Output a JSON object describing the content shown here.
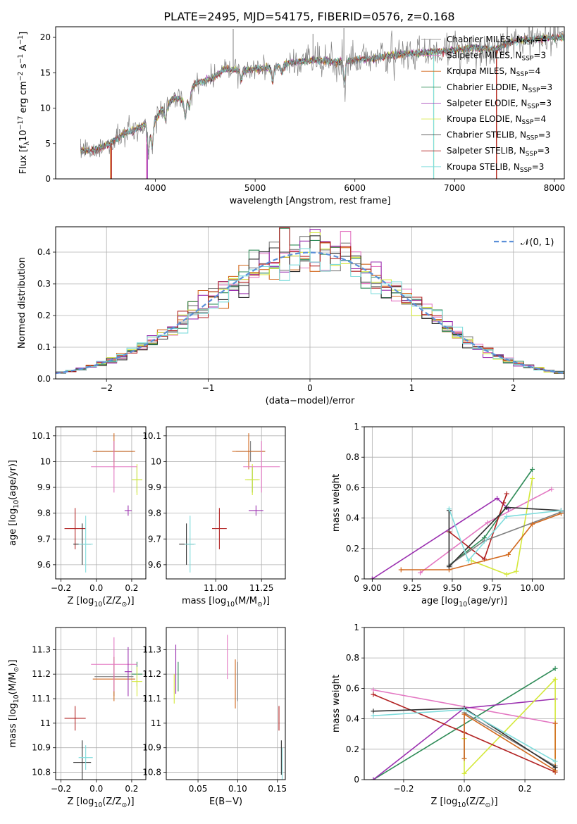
{
  "figure_title": "PLATE=2495, MJD=54175, FIBERID=0576, z=0.168",
  "models": [
    {
      "label": "Chabrier MILES, N$_{SSP}$=4",
      "short": "Chabrier MILES, N",
      "n": "4",
      "color": "#7f7f7f"
    },
    {
      "label": "Salpeter MILES, N$_{SSP}$=3",
      "short": "Salpeter MILES, N",
      "n": "3",
      "color": "#e377c2"
    },
    {
      "label": "Kroupa MILES, N$_{SSP}$=4",
      "short": "Kroupa MILES, N",
      "n": "4",
      "color": "#d2691e"
    },
    {
      "label": "Chabrier ELODIE, N$_{SSP}$=3",
      "short": "Chabrier ELODIE, N",
      "n": "3",
      "color": "#2e8b57"
    },
    {
      "label": "Salpeter ELODIE, N$_{SSP}$=3",
      "short": "Salpeter ELODIE, N",
      "n": "3",
      "color": "#9b30b0"
    },
    {
      "label": "Kroupa ELODIE, N$_{SSP}$=4",
      "short": "Kroupa ELODIE, N",
      "n": "4",
      "color": "#d4e83a"
    },
    {
      "label": "Chabrier STELIB, N$_{SSP}$=3",
      "short": "Chabrier STELIB, N",
      "n": "3",
      "color": "#2f2f2f"
    },
    {
      "label": "Salpeter STELIB, N$_{SSP}$=3",
      "short": "Salpeter STELIB, N",
      "n": "3",
      "color": "#b22222"
    },
    {
      "label": "Kroupa STELIB, N$_{SSP}$=3",
      "short": "Kroupa STELIB, N",
      "n": "3",
      "color": "#7fdcdc"
    }
  ],
  "chart_data": [
    {
      "id": "spectrum",
      "type": "line",
      "title": "PLATE=2495, MJD=54175, FIBERID=0576, z=0.168",
      "xlabel": "wavelength [Angstrom, rest frame]",
      "ylabel": "Flux [f$_\\lambda$10$^{-17}$ erg cm$^{-2}$ s$^{-1}$ A$^{-1}$]",
      "xlim": [
        3000,
        8100
      ],
      "ylim": [
        0,
        21.5
      ],
      "xticks": [
        4000,
        5000,
        6000,
        7000,
        8000
      ],
      "yticks": [
        0,
        5,
        10,
        15,
        20
      ],
      "continuum": {
        "x": [
          3250,
          3400,
          3550,
          3700,
          3800,
          3900,
          3950,
          4050,
          4200,
          4300,
          4400,
          4550,
          4700,
          4850,
          5000,
          5200,
          5400,
          5600,
          5800,
          6000,
          6200,
          6400,
          6600,
          6800,
          7000,
          7200,
          7400,
          7600,
          7800,
          8000
        ],
        "y": [
          4.0,
          4.1,
          5.0,
          6.5,
          7.0,
          7.8,
          7.0,
          9.5,
          11.5,
          11.0,
          13.5,
          14.0,
          15.5,
          15.3,
          15.5,
          15.8,
          16.5,
          16.8,
          16.5,
          16.8,
          17.0,
          17.5,
          17.8,
          18.0,
          18.2,
          18.5,
          18.3,
          19.5,
          19.8,
          20.0
        ]
      },
      "absorption_features": [
        {
          "x": 3930,
          "depth": 3.5
        },
        {
          "x": 3968,
          "depth": 3.0
        },
        {
          "x": 4102,
          "depth": 2.0
        },
        {
          "x": 4300,
          "depth": 2.5
        },
        {
          "x": 4340,
          "depth": 2.0
        },
        {
          "x": 4861,
          "depth": 1.5
        },
        {
          "x": 5175,
          "depth": 2.0
        },
        {
          "x": 5270,
          "depth": 1.2
        },
        {
          "x": 5893,
          "depth": 3.0
        }
      ],
      "emission_spikes": [
        {
          "x": 4780,
          "height": 21.2
        },
        {
          "x": 5580,
          "height": 20.5
        },
        {
          "x": 5890,
          "height": 21.3
        }
      ],
      "model_cutoffs": [
        {
          "model": 2,
          "x": 3550
        },
        {
          "model": 7,
          "x": 3560
        },
        {
          "model": 1,
          "x": 3910
        },
        {
          "model": 4,
          "x": 3920
        },
        {
          "model": 5,
          "x": 6790
        },
        {
          "model": 8,
          "x": 6790
        },
        {
          "model": 2,
          "x": 7420
        },
        {
          "model": 7,
          "x": 7420
        }
      ]
    },
    {
      "id": "residual-hist",
      "type": "line",
      "xlabel": "(data-model)/error",
      "ylabel": "Normed distribution",
      "xlim": [
        -2.5,
        2.5
      ],
      "ylim": [
        0,
        0.48
      ],
      "xticks": [
        -2,
        -1,
        0,
        1,
        2
      ],
      "xticklabels": [
        "−2",
        "−1",
        "0",
        "1",
        "2"
      ],
      "yticks": [
        0.0,
        0.1,
        0.2,
        0.3,
        0.4
      ],
      "yticklabels": [
        "0.0",
        "0.1",
        "0.2",
        "0.3",
        "0.4"
      ],
      "grid": true,
      "legend": {
        "label": "$\\mathcal{N}(0, 1)$",
        "display": "𝒩(0, 1)",
        "position": "top-right",
        "color": "#5b8fd8"
      },
      "bin_width": 0.1,
      "bin_start": -2.5
    },
    {
      "id": "age-vs-Z",
      "type": "scatter",
      "xlabel": "Z [log$_{10}$($Z/Z_\\odot$)]",
      "ylabel": "age  [log$_{10}$($age/yr$)]",
      "xlim": [
        -0.23,
        0.28
      ],
      "ylim": [
        9.545,
        10.135
      ],
      "xticks": [
        -0.2,
        0.0,
        0.2
      ],
      "xticklabels": [
        "−0.2",
        "0.0",
        "0.2"
      ],
      "yticks": [
        9.6,
        9.7,
        9.8,
        9.9,
        10.0,
        10.1
      ],
      "grid": true,
      "points": [
        {
          "model": 3,
          "x": 0.23,
          "y": 9.93,
          "xerr": 0.03,
          "yerr": 0.05
        },
        {
          "model": 5,
          "x": 0.23,
          "y": 9.93,
          "xerr": 0.03,
          "yerr": 0.06
        },
        {
          "model": 0,
          "x": 0.1,
          "y": 10.04,
          "xerr": 0.11,
          "yerr": 0.04
        },
        {
          "model": 2,
          "x": 0.1,
          "y": 10.04,
          "xerr": 0.12,
          "yerr": 0.07
        },
        {
          "model": 1,
          "x": 0.1,
          "y": 9.98,
          "xerr": 0.13,
          "yerr": 0.1
        },
        {
          "model": 4,
          "x": 0.18,
          "y": 9.81,
          "xerr": 0.02,
          "yerr": 0.02
        },
        {
          "model": 7,
          "x": -0.12,
          "y": 9.74,
          "xerr": 0.06,
          "yerr": 0.08
        },
        {
          "model": 6,
          "x": -0.08,
          "y": 9.68,
          "xerr": 0.05,
          "yerr": 0.08
        },
        {
          "model": 8,
          "x": -0.06,
          "y": 9.68,
          "xerr": 0.04,
          "yerr": 0.11
        }
      ]
    },
    {
      "id": "age-vs-mass",
      "type": "scatter",
      "xlabel": "mass [log$_{10}$($M/M_\\odot$)]",
      "xlim": [
        10.73,
        11.38
      ],
      "ylim": [
        9.545,
        10.135
      ],
      "xticks": [
        11.0,
        11.25
      ],
      "xticklabels": [
        "11.00",
        "11.25"
      ],
      "yticks": [
        9.6,
        9.7,
        9.8,
        9.9,
        10.0,
        10.1
      ],
      "grid": true,
      "points": [
        {
          "model": 3,
          "x": 11.2,
          "y": 9.93,
          "xerr": 0.03,
          "yerr": 0.05
        },
        {
          "model": 5,
          "x": 11.2,
          "y": 9.93,
          "xerr": 0.04,
          "yerr": 0.06
        },
        {
          "model": 0,
          "x": 11.19,
          "y": 10.04,
          "xerr": 0.08,
          "yerr": 0.04
        },
        {
          "model": 2,
          "x": 11.18,
          "y": 10.04,
          "xerr": 0.09,
          "yerr": 0.07
        },
        {
          "model": 1,
          "x": 11.25,
          "y": 9.98,
          "xerr": 0.1,
          "yerr": 0.1
        },
        {
          "model": 4,
          "x": 11.22,
          "y": 9.81,
          "xerr": 0.04,
          "yerr": 0.02
        },
        {
          "model": 7,
          "x": 11.02,
          "y": 9.74,
          "xerr": 0.04,
          "yerr": 0.08
        },
        {
          "model": 6,
          "x": 10.84,
          "y": 9.68,
          "xerr": 0.04,
          "yerr": 0.08
        },
        {
          "model": 8,
          "x": 10.86,
          "y": 9.68,
          "xerr": 0.03,
          "yerr": 0.11
        }
      ]
    },
    {
      "id": "massweight-vs-age",
      "type": "line",
      "xlabel": "age  [log$_{10}$($age/yr$)]",
      "ylabel": "mass weight",
      "xlim": [
        8.95,
        10.2
      ],
      "ylim": [
        0,
        1
      ],
      "xticks": [
        9.0,
        9.25,
        9.5,
        9.75,
        10.0
      ],
      "xticklabels": [
        "9.00",
        "9.25",
        "9.50",
        "9.75",
        "10.00"
      ],
      "yticks": [
        0.0,
        0.2,
        0.4,
        0.6,
        0.8,
        1.0
      ],
      "grid": true,
      "series": [
        {
          "model": 1,
          "x": [
            9.3,
            9.72,
            10.12
          ],
          "y": [
            0.04,
            0.37,
            0.59
          ]
        },
        {
          "model": 3,
          "x": [
            9.48,
            9.7,
            10.0
          ],
          "y": [
            0.09,
            0.27,
            0.72
          ]
        },
        {
          "model": 4,
          "x": [
            9.0,
            9.78,
            9.85
          ],
          "y": [
            0.0,
            0.53,
            0.46
          ]
        },
        {
          "model": 5,
          "x": [
            9.62,
            9.84,
            9.9,
            10.0
          ],
          "y": [
            0.12,
            0.03,
            0.05,
            0.66
          ]
        },
        {
          "model": 7,
          "x": [
            9.48,
            9.7,
            9.82,
            9.84
          ],
          "y": [
            0.31,
            0.13,
            0.5,
            0.56
          ]
        },
        {
          "model": 0,
          "x": [
            9.48,
            9.7,
            10.18
          ],
          "y": [
            0.09,
            0.25,
            0.44
          ]
        },
        {
          "model": 2,
          "x": [
            9.18,
            9.48,
            9.85,
            10.0,
            10.18
          ],
          "y": [
            0.06,
            0.06,
            0.16,
            0.36,
            0.43
          ]
        },
        {
          "model": 6,
          "x": [
            9.48,
            9.48,
            9.84,
            10.18
          ],
          "y": [
            0.45,
            0.08,
            0.47,
            0.45
          ]
        },
        {
          "model": 8,
          "x": [
            9.48,
            9.6,
            9.84,
            10.18
          ],
          "y": [
            0.46,
            0.12,
            0.41,
            0.45
          ]
        }
      ]
    },
    {
      "id": "mass-vs-Z",
      "type": "scatter",
      "xlabel": "Z [log$_{10}$($Z/Z_\\odot$)]",
      "ylabel": "mass [log$_{10}$($M/M_\\odot$)]",
      "xlim": [
        -0.23,
        0.28
      ],
      "ylim": [
        10.77,
        11.39
      ],
      "xticks": [
        -0.2,
        0.0,
        0.2
      ],
      "xticklabels": [
        "−0.2",
        "0.0",
        "0.2"
      ],
      "yticks": [
        10.8,
        10.9,
        11.0,
        11.1,
        11.2,
        11.3
      ],
      "grid": true,
      "points": [
        {
          "model": 3,
          "x": 0.23,
          "y": 11.2,
          "xerr": 0.03,
          "yerr": 0.05
        },
        {
          "model": 5,
          "x": 0.23,
          "y": 11.17,
          "xerr": 0.03,
          "yerr": 0.06
        },
        {
          "model": 0,
          "x": 0.1,
          "y": 11.19,
          "xerr": 0.11,
          "yerr": 0.08
        },
        {
          "model": 2,
          "x": 0.1,
          "y": 11.18,
          "xerr": 0.12,
          "yerr": 0.09
        },
        {
          "model": 1,
          "x": 0.1,
          "y": 11.24,
          "xerr": 0.13,
          "yerr": 0.11
        },
        {
          "model": 4,
          "x": 0.18,
          "y": 11.21,
          "xerr": 0.02,
          "yerr": 0.1
        },
        {
          "model": 7,
          "x": -0.12,
          "y": 11.02,
          "xerr": 0.06,
          "yerr": 0.05
        },
        {
          "model": 6,
          "x": -0.08,
          "y": 10.84,
          "xerr": 0.05,
          "yerr": 0.09
        },
        {
          "model": 8,
          "x": -0.06,
          "y": 10.86,
          "xerr": 0.04,
          "yerr": 0.05
        }
      ]
    },
    {
      "id": "mass-vs-EBV",
      "type": "scatter",
      "xlabel": "E(B-V)",
      "xlim": [
        0.01,
        0.16
      ],
      "ylim": [
        10.77,
        11.39
      ],
      "xticks": [
        0.05,
        0.1,
        0.15
      ],
      "xticklabels": [
        "0.05",
        "0.10",
        "0.15"
      ],
      "yticks": [
        10.8,
        10.9,
        11.0,
        11.1,
        11.2,
        11.3
      ],
      "grid": true,
      "points": [
        {
          "model": 4,
          "x": 0.022,
          "y": 11.22,
          "xerr": 0.0,
          "yerr": 0.1
        },
        {
          "model": 3,
          "x": 0.025,
          "y": 11.19,
          "xerr": 0.0,
          "yerr": 0.06
        },
        {
          "model": 5,
          "x": 0.02,
          "y": 11.14,
          "xerr": 0.0,
          "yerr": 0.06
        },
        {
          "model": 1,
          "x": 0.087,
          "y": 11.27,
          "xerr": 0.0,
          "yerr": 0.09
        },
        {
          "model": 2,
          "x": 0.097,
          "y": 11.16,
          "xerr": 0.0,
          "yerr": 0.1
        },
        {
          "model": 0,
          "x": 0.1,
          "y": 11.17,
          "xerr": 0.0,
          "yerr": 0.08
        },
        {
          "model": 7,
          "x": 0.152,
          "y": 11.02,
          "xerr": 0.0,
          "yerr": 0.05
        },
        {
          "model": 6,
          "x": 0.155,
          "y": 10.86,
          "xerr": 0.0,
          "yerr": 0.07
        },
        {
          "model": 8,
          "x": 0.156,
          "y": 10.83,
          "xerr": 0.0,
          "yerr": 0.07
        }
      ]
    },
    {
      "id": "massweight-vs-Z",
      "type": "line",
      "xlabel": "Z [log$_{10}$($Z/Z_\\odot$)]",
      "ylabel": "mass weight",
      "xlim": [
        -0.33,
        0.33
      ],
      "ylim": [
        0,
        1
      ],
      "xticks": [
        -0.2,
        0.0,
        0.2
      ],
      "xticklabels": [
        "−0.2",
        "0.0",
        "0.2"
      ],
      "yticks": [
        0.0,
        0.2,
        0.4,
        0.6,
        0.8,
        1.0
      ],
      "grid": true,
      "series": [
        {
          "model": 1,
          "x": [
            -0.3,
            0.3
          ],
          "y": [
            0.59,
            0.37
          ]
        },
        {
          "model": 3,
          "x": [
            -0.3,
            0.3
          ],
          "y": [
            0.0,
            0.73
          ]
        },
        {
          "model": 4,
          "x": [
            -0.3,
            0.0,
            0.3
          ],
          "y": [
            0.0,
            0.47,
            0.53
          ]
        },
        {
          "model": 5,
          "x": [
            0.0,
            0.0,
            0.3,
            0.3
          ],
          "y": [
            0.27,
            0.04,
            0.66,
            0.05
          ]
        },
        {
          "model": 7,
          "x": [
            -0.3,
            0.0,
            0.3
          ],
          "y": [
            0.56,
            0.31,
            0.05
          ]
        },
        {
          "model": 0,
          "x": [
            0.0,
            0.0,
            0.3,
            0.3
          ],
          "y": [
            0.14,
            0.44,
            0.09,
            0.09
          ]
        },
        {
          "model": 2,
          "x": [
            0.0,
            0.0,
            0.3,
            0.3
          ],
          "y": [
            0.14,
            0.43,
            0.06,
            0.37
          ]
        },
        {
          "model": 6,
          "x": [
            -0.3,
            0.0,
            0.3
          ],
          "y": [
            0.45,
            0.47,
            0.08
          ]
        },
        {
          "model": 8,
          "x": [
            -0.3,
            0.0,
            0.3
          ],
          "y": [
            0.42,
            0.46,
            0.12
          ]
        }
      ]
    }
  ]
}
